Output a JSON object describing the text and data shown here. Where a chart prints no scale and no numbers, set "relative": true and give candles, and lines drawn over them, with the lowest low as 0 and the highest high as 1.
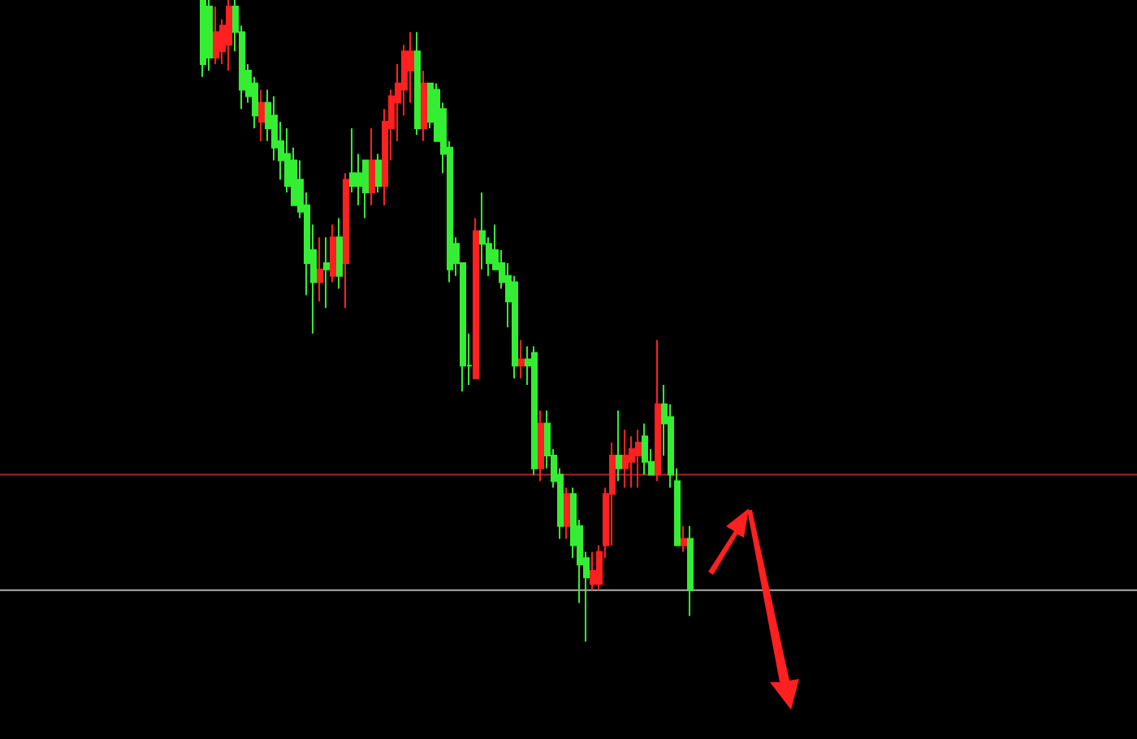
{
  "chart_data": {
    "type": "candlestick",
    "relative": true,
    "categories": [
      null,
      null,
      null,
      null,
      null,
      null,
      null,
      null,
      null,
      null,
      null,
      null,
      null,
      null,
      null,
      null,
      null,
      null,
      null,
      null,
      null,
      null,
      null,
      null,
      null,
      null,
      null,
      null,
      null,
      null,
      null,
      null,
      null,
      null,
      null,
      null,
      null,
      null,
      null,
      null,
      null,
      null,
      null,
      null,
      null,
      null,
      null,
      null,
      null,
      null,
      null,
      null,
      null,
      null,
      null,
      null,
      null,
      null,
      null,
      null,
      null,
      null,
      null,
      null,
      null,
      null,
      null,
      null,
      null,
      null,
      null,
      null,
      null,
      null,
      null,
      null
    ],
    "colors": [
      "#33ee33",
      "#33ee33",
      "#ff2020",
      "#ff2020",
      "#ff2020",
      "#33ee33",
      "#33ee33",
      "#33ee33",
      "#33ee33",
      "#ff2020",
      "#33ee33",
      "#33ee33",
      "#33ee33",
      "#33ee33",
      "#33ee33",
      "#33ee33",
      "#33ee33",
      "#33ee33",
      "#ff2020",
      "#33ee33",
      "#ff2020",
      "#33ee33",
      "#ff2020",
      "#33ee33",
      "#33ee33",
      "#33ee33",
      "#ff2020",
      "#33ee33",
      "#ff2020",
      "#ff2020",
      "#ff2020",
      "#ff2020",
      "#ff2020",
      "#33ee33",
      "#ff2020",
      "#33ee33",
      "#33ee33",
      "#33ee33",
      "#33ee33",
      "#33ee33",
      "#33ee33",
      "#33ee33",
      "#ff2020",
      "#33ee33",
      "#33ee33",
      "#33ee33",
      "#33ee33",
      "#33ee33",
      "#33ee33",
      "#ff2020",
      "#33ee33",
      "#33ee33",
      "#ff2020",
      "#33ee33",
      "#33ee33",
      "#33ee33",
      "#ff2020",
      "#33ee33",
      "#33ee33",
      "#33ee33",
      "#ff2020",
      "#ff2020",
      "#ff2020",
      "#ff2020",
      "#33ee33",
      "#ff2020",
      "#ff2020",
      "#ff2020",
      "#33ee33",
      "#33ee33",
      "#ff2020",
      "#33ee33",
      "#33ee33",
      "#33ee33",
      "#ff2020",
      "#33ee33"
    ],
    "ohlc": [
      [
        1,
        1,
        0.88,
        0.9
      ],
      [
        0.99,
        1,
        0.89,
        0.91
      ],
      [
        0.91,
        0.99,
        0.9,
        0.95
      ],
      [
        0.92,
        0.97,
        0.9,
        0.96
      ],
      [
        0.93,
        1,
        0.89,
        0.99
      ],
      [
        0.99,
        1,
        0.92,
        0.95
      ],
      [
        0.95,
        0.96,
        0.83,
        0.86
      ],
      [
        0.89,
        0.9,
        0.84,
        0.85
      ],
      [
        0.87,
        0.88,
        0.8,
        0.82
      ],
      [
        0.81,
        0.86,
        0.78,
        0.84
      ],
      [
        0.84,
        0.86,
        0.78,
        0.8
      ],
      [
        0.82,
        0.85,
        0.75,
        0.77
      ],
      [
        0.78,
        0.81,
        0.72,
        0.75
      ],
      [
        0.76,
        0.8,
        0.7,
        0.71
      ],
      [
        0.75,
        0.77,
        0.68,
        0.68
      ],
      [
        0.72,
        0.75,
        0.66,
        0.67
      ],
      [
        0.68,
        0.7,
        0.54,
        0.59
      ],
      [
        0.61,
        0.65,
        0.48,
        0.56
      ],
      [
        0.56,
        0.63,
        0.53,
        0.58
      ],
      [
        0.59,
        0.63,
        0.52,
        0.58
      ],
      [
        0.57,
        0.65,
        0.56,
        0.63
      ],
      [
        0.63,
        0.66,
        0.55,
        0.57
      ],
      [
        0.59,
        0.73,
        0.52,
        0.72
      ],
      [
        0.73,
        0.8,
        0.7,
        0.71
      ],
      [
        0.73,
        0.76,
        0.68,
        0.71
      ],
      [
        0.75,
        0.75,
        0.66,
        0.7
      ],
      [
        0.7,
        0.8,
        0.68,
        0.75
      ],
      [
        0.75,
        0.76,
        0.7,
        0.71
      ],
      [
        0.71,
        0.83,
        0.68,
        0.81
      ],
      [
        0.8,
        0.86,
        0.75,
        0.85
      ],
      [
        0.84,
        0.9,
        0.78,
        0.87
      ],
      [
        0.86,
        0.93,
        0.82,
        0.92
      ],
      [
        0.89,
        0.95,
        0.84,
        0.92
      ],
      [
        0.92,
        0.95,
        0.79,
        0.8
      ],
      [
        0.8,
        0.89,
        0.78,
        0.87
      ],
      [
        0.87,
        0.87,
        0.8,
        0.81
      ],
      [
        0.86,
        0.87,
        0.78,
        0.78
      ],
      [
        0.83,
        0.84,
        0.73,
        0.76
      ],
      [
        0.77,
        0.78,
        0.56,
        0.58
      ],
      [
        0.62,
        0.63,
        0.57,
        0.59
      ],
      [
        0.59,
        0.59,
        0.39,
        0.43
      ],
      [
        0.43,
        0.48,
        0.4,
        0.43
      ],
      [
        0.41,
        0.66,
        0.41,
        0.64
      ],
      [
        0.64,
        0.7,
        0.58,
        0.62
      ],
      [
        0.62,
        0.63,
        0.57,
        0.59
      ],
      [
        0.61,
        0.65,
        0.58,
        0.58
      ],
      [
        0.59,
        0.61,
        0.55,
        0.56
      ],
      [
        0.57,
        0.59,
        0.49,
        0.53
      ],
      [
        0.56,
        0.57,
        0.41,
        0.43
      ],
      [
        0.43,
        0.47,
        0.41,
        0.44
      ],
      [
        0.44,
        0.46,
        0.4,
        0.43
      ],
      [
        0.45,
        0.46,
        0.26,
        0.27
      ],
      [
        0.27,
        0.36,
        0.25,
        0.34
      ],
      [
        0.34,
        0.36,
        0.27,
        0.29
      ],
      [
        0.29,
        0.3,
        0.24,
        0.25
      ],
      [
        0.26,
        0.27,
        0.16,
        0.18
      ],
      [
        0.18,
        0.24,
        0.16,
        0.23
      ],
      [
        0.23,
        0.24,
        0.13,
        0.15
      ],
      [
        0.18,
        0.19,
        0.06,
        0.12
      ],
      [
        0.13,
        0.14,
        0,
        0.1
      ],
      [
        0.09,
        0.14,
        0.08,
        0.11
      ],
      [
        0.09,
        0.15,
        0.08,
        0.14
      ],
      [
        0.15,
        0.24,
        0.13,
        0.23
      ],
      [
        0.23,
        0.31,
        0.15,
        0.29
      ],
      [
        0.29,
        0.36,
        0.25,
        0.27
      ],
      [
        0.27,
        0.33,
        0.24,
        0.29
      ],
      [
        0.28,
        0.32,
        0.24,
        0.3
      ],
      [
        0.29,
        0.33,
        0.24,
        0.31
      ],
      [
        0.32,
        0.34,
        0.26,
        0.28
      ],
      [
        0.28,
        0.3,
        0.26,
        0.26
      ],
      [
        0.26,
        0.47,
        0.25,
        0.37
      ],
      [
        0.37,
        0.4,
        0.29,
        0.34
      ],
      [
        0.35,
        0.37,
        0.24,
        0.26
      ],
      [
        0.25,
        0.27,
        0.15,
        0.15
      ],
      [
        0.15,
        0.18,
        0.14,
        0.16
      ],
      [
        0.16,
        0.18,
        0.04,
        0.08
      ]
    ],
    "ref_lines": [
      {
        "axis": "y",
        "value": 0.26,
        "color": "#b22222"
      },
      {
        "axis": "y",
        "value": 0.08,
        "color": "#b0b0b0"
      }
    ]
  }
}
